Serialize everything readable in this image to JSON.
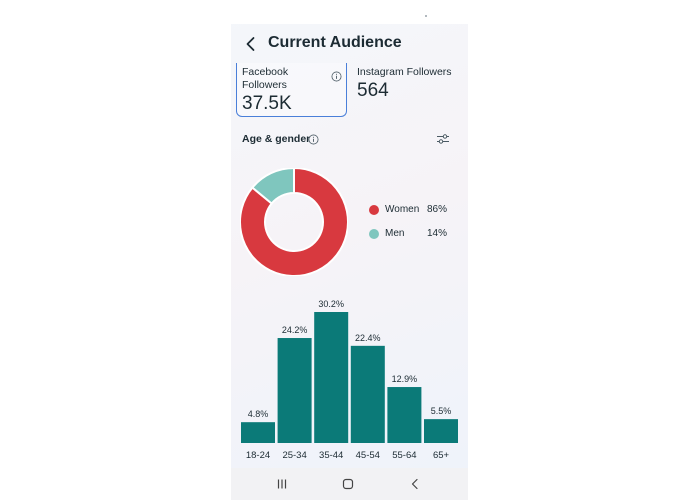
{
  "header": {
    "title": "Current Audience",
    "back_icon": "chevron-left-icon"
  },
  "cards": [
    {
      "label": "Facebook Followers",
      "value": "37.5K",
      "icon": "info-icon"
    },
    {
      "label": "Instagram Followers",
      "value": "564"
    }
  ],
  "section": {
    "title": "Age & gender",
    "info_icon": "info-icon",
    "filter_icon": "sliders-icon"
  },
  "colors": {
    "women": "#d8393f",
    "men": "#7fc6be",
    "bar": "#0b7a78",
    "card_border": "#4a7fd9"
  },
  "gender": {
    "items": [
      {
        "name": "Women",
        "percent": "86%",
        "value": 86
      },
      {
        "name": "Men",
        "percent": "14%",
        "value": 14
      }
    ]
  },
  "chart_data": [
    {
      "type": "pie",
      "categories": [
        "Women",
        "Men"
      ],
      "values": [
        86,
        14
      ],
      "title": "",
      "legend": "right"
    },
    {
      "type": "bar",
      "categories": [
        "18-24",
        "25-34",
        "35-44",
        "45-54",
        "55-64",
        "65+"
      ],
      "values": [
        4.8,
        24.2,
        30.2,
        22.4,
        12.9,
        5.5
      ],
      "data_labels": [
        "4.8%",
        "24.2%",
        "30.2%",
        "22.4%",
        "12.9%",
        "5.5%"
      ],
      "title": "",
      "xlabel": "",
      "ylabel": "",
      "ylim": [
        0,
        30.2
      ],
      "grid": false
    }
  ],
  "nav": {
    "items": [
      {
        "name": "recent-apps",
        "icon": "recent-apps-icon"
      },
      {
        "name": "home",
        "icon": "home-icon"
      },
      {
        "name": "back",
        "icon": "back-icon"
      }
    ]
  }
}
